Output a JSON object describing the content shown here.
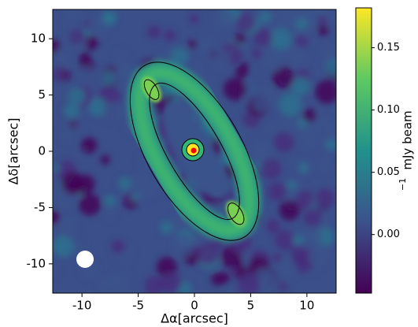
{
  "chart_data": {
    "type": "image",
    "xlabel": "Δα[arcsec]",
    "ylabel": "Δδ[arcsec]",
    "xlim": [
      -12.6,
      12.6
    ],
    "ylim": [
      -12.6,
      12.6
    ],
    "xticks": [
      -10,
      -5,
      0,
      5,
      10
    ],
    "yticks": [
      -10,
      -5,
      0,
      5,
      10
    ],
    "colormap": "viridis",
    "colorbar": {
      "label": "mJy beam",
      "label_superscript": "−1",
      "lim": [
        -0.047,
        0.182
      ],
      "ticks": [
        {
          "value": 0,
          "label": "0.00"
        },
        {
          "value": 0.05,
          "label": "0.05"
        },
        {
          "value": 0.1,
          "label": "0.10"
        },
        {
          "value": 0.15,
          "label": "0.15"
        }
      ]
    }
  }
}
